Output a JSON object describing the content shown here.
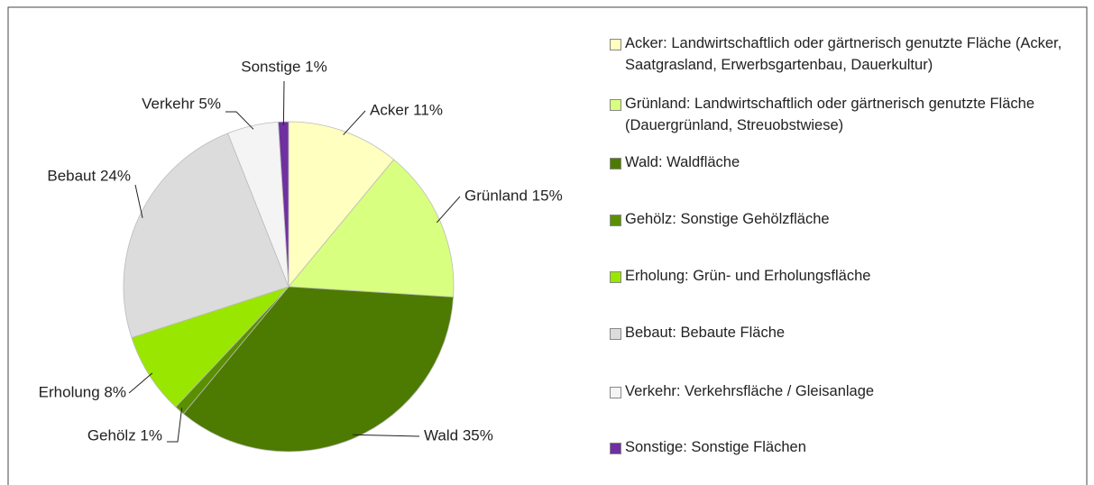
{
  "chart_data": {
    "type": "pie",
    "categories": [
      "Acker: Landwirtschaftlich oder gärtnerisch genutzte Fläche (Acker, Saatgrasland, Erwerbsgartenbau, Dauerkultur)",
      "Grünland: Landwirtschaftlich oder gärtnerisch genutzte Fläche (Dauergrünland, Streuobstwiese)",
      "Wald: Waldfläche",
      "Gehölz: Sonstige Gehölzfläche",
      "Erholung: Grün- und Erholungsfläche",
      "Bebaut: Bebaute Fläche",
      "Verkehr: Verkehrsfläche / Gleisanlage",
      "Sonstige: Sonstige Flächen"
    ],
    "values": [
      11,
      15,
      35,
      1,
      8,
      24,
      5,
      1
    ],
    "value_labels": [
      "Acker 11%",
      "Grünland 15%",
      "Wald 35%",
      "Gehölz 1%",
      "Erholung 8%",
      "Bebaut 24%",
      "Verkehr 5%",
      "Sonstige 1%"
    ],
    "colors": [
      "#ffffc0",
      "#d9ff80",
      "#4d7a00",
      "#5a8f00",
      "#99e600",
      "#dcdcdc",
      "#f4f4f4",
      "#7030a0"
    ]
  }
}
